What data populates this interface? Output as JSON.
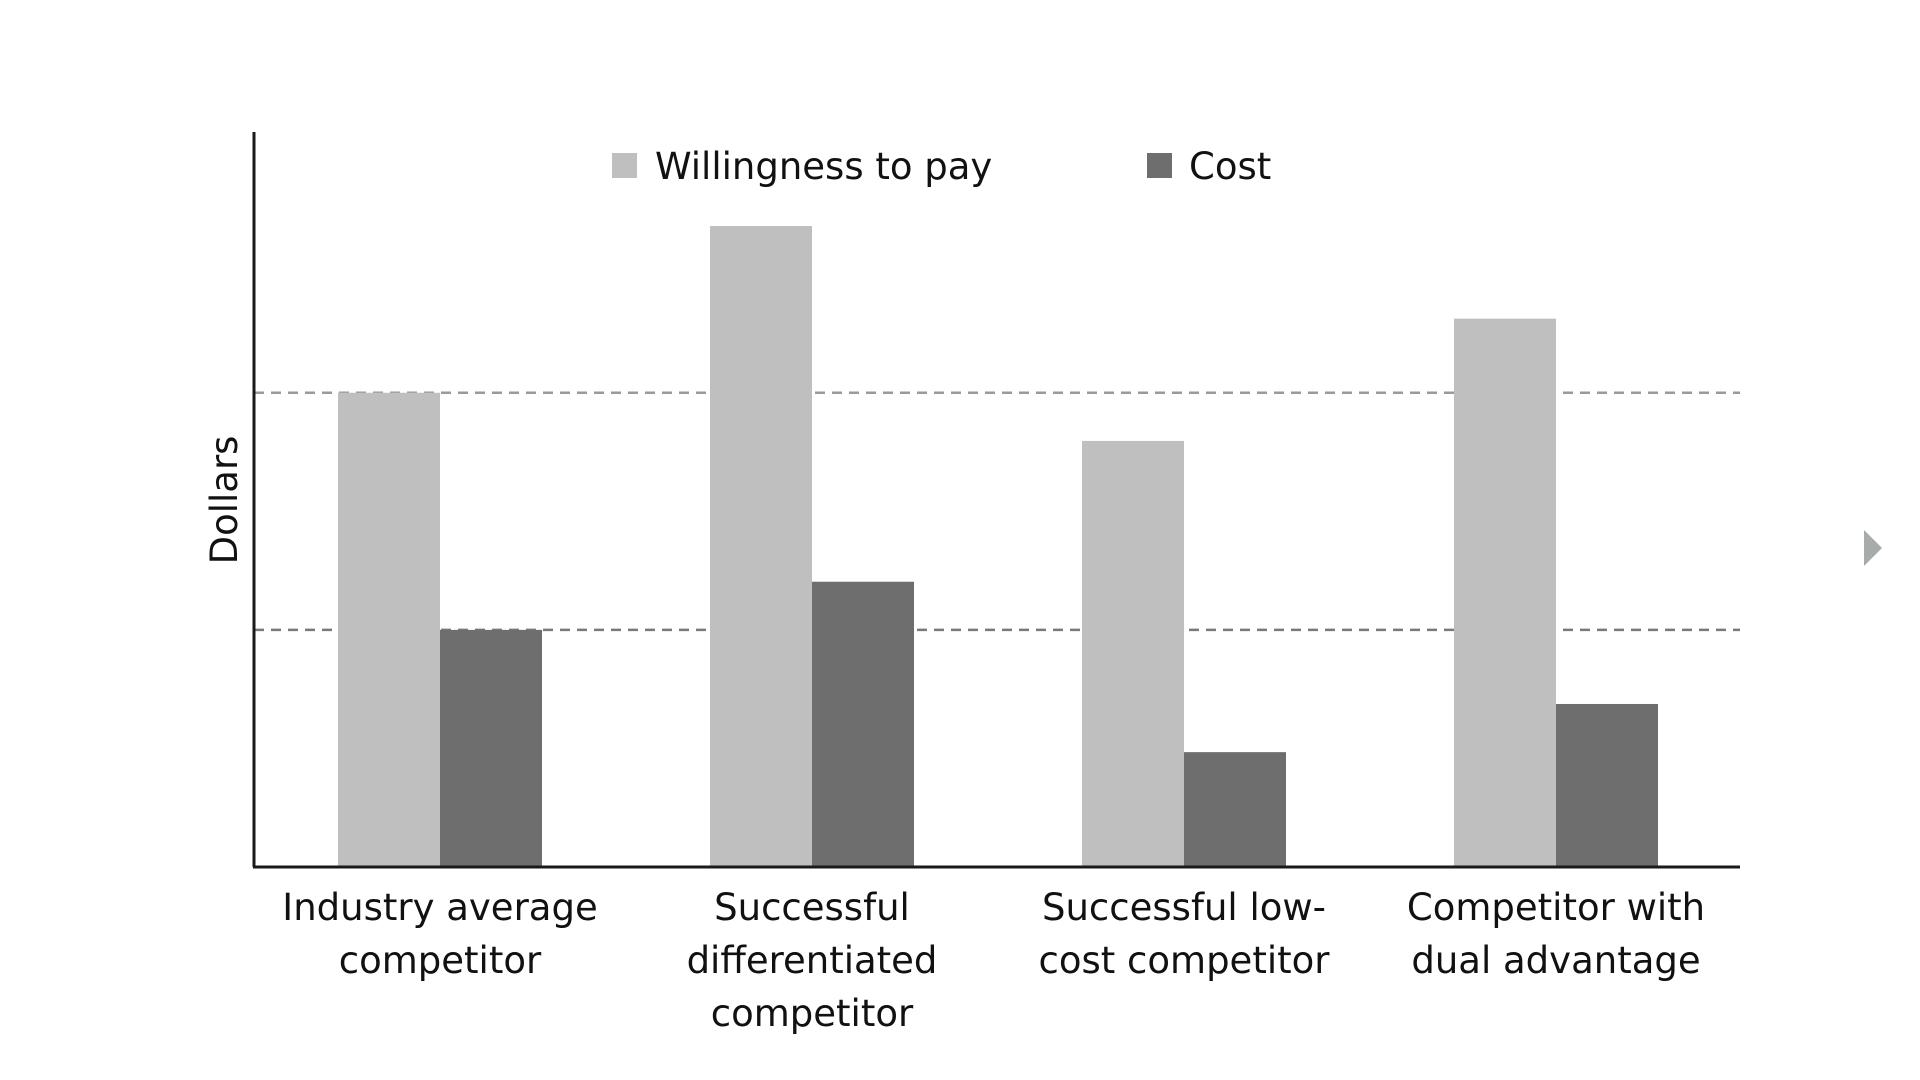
{
  "chart_data": {
    "type": "bar",
    "title": "",
    "xlabel": "",
    "ylabel": "Dollars",
    "ylim": [
      0,
      100
    ],
    "grid": false,
    "legend_placement": "top-center",
    "categories": [
      [
        "Industry average",
        "competitor"
      ],
      [
        "Successful",
        "differentiated",
        "competitor"
      ],
      [
        "Successful low-",
        "cost competitor"
      ],
      [
        "Competitor with",
        "dual advantage"
      ]
    ],
    "series": [
      {
        "name": "Willingness to pay",
        "color": "#bfbfbf",
        "values": [
          64,
          86.5,
          57.5,
          74
        ]
      },
      {
        "name": "Cost",
        "color": "#6e6e6e",
        "values": [
          32,
          38.5,
          15.5,
          22
        ]
      }
    ],
    "reference_lines": [
      {
        "value": 64,
        "style": "dashed",
        "color": "#9a9a9a"
      },
      {
        "value": 32,
        "style": "dashed",
        "color": "#7a7a7a"
      }
    ]
  },
  "nav": {
    "next_icon": "chevron-right-icon",
    "color": "#a7aba9"
  }
}
